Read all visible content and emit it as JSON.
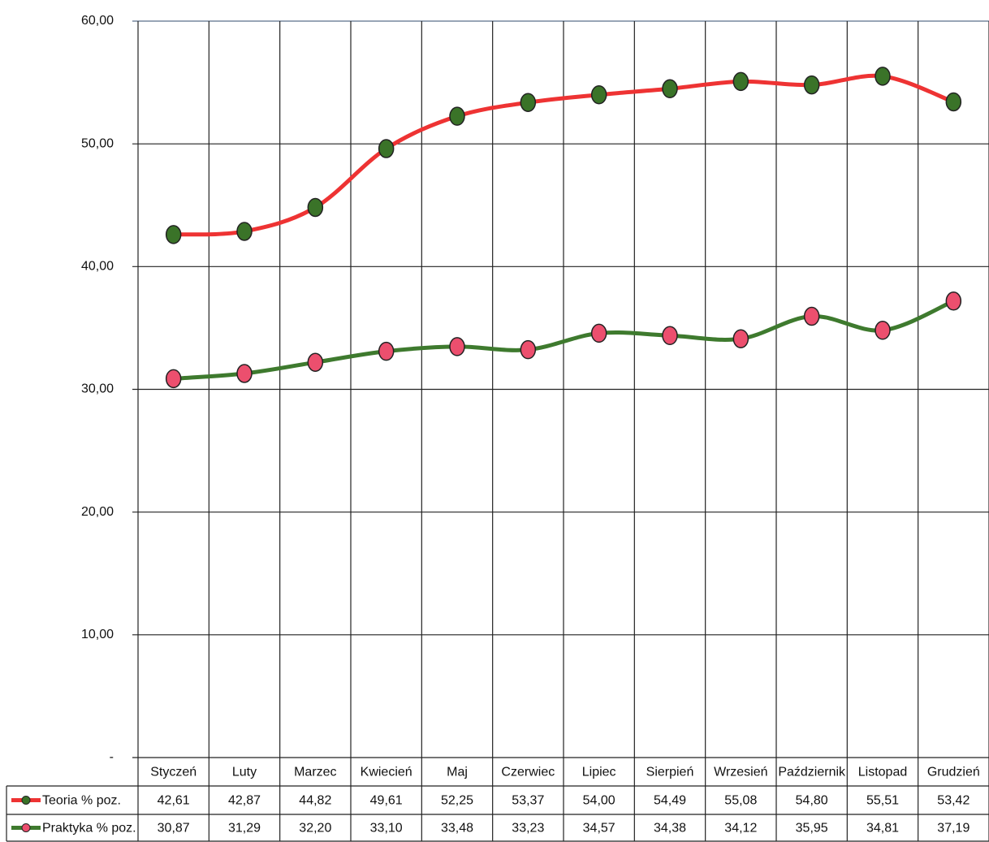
{
  "chart_data": {
    "type": "line",
    "categories": [
      "Styczeń",
      "Luty",
      "Marzec",
      "Kwiecień",
      "Maj",
      "Czerwiec",
      "Lipiec",
      "Sierpień",
      "Wrzesień",
      "Październik",
      "Listopad",
      "Grudzień"
    ],
    "series": [
      {
        "name": "Teoria % poz.",
        "color": "#ee3333",
        "marker_color": "#3a7328",
        "values": [
          42.61,
          42.87,
          44.82,
          49.61,
          52.25,
          53.37,
          54.0,
          54.49,
          55.08,
          54.8,
          55.51,
          53.42
        ],
        "value_labels": [
          "42,61",
          "42,87",
          "44,82",
          "49,61",
          "52,25",
          "53,37",
          "54,00",
          "54,49",
          "55,08",
          "54,80",
          "55,51",
          "53,42"
        ]
      },
      {
        "name": "Praktyka % poz.",
        "color": "#3e7a2e",
        "marker_color": "#ec4f6e",
        "values": [
          30.87,
          31.29,
          32.2,
          33.1,
          33.48,
          33.23,
          34.57,
          34.38,
          34.12,
          35.95,
          34.81,
          37.19
        ],
        "value_labels": [
          "30,87",
          "31,29",
          "32,20",
          "33,10",
          "33,48",
          "33,23",
          "34,57",
          "34,38",
          "34,12",
          "35,95",
          "34,81",
          "37,19"
        ]
      }
    ],
    "ylim": [
      0,
      60
    ],
    "yticks": [
      {
        "value": 0,
        "label": "-"
      },
      {
        "value": 10,
        "label": "10,00"
      },
      {
        "value": 20,
        "label": "20,00"
      },
      {
        "value": 30,
        "label": "30,00"
      },
      {
        "value": 40,
        "label": "40,00"
      },
      {
        "value": 50,
        "label": "50,00"
      },
      {
        "value": 60,
        "label": "60,00"
      }
    ],
    "grid": true,
    "smooth": true
  }
}
